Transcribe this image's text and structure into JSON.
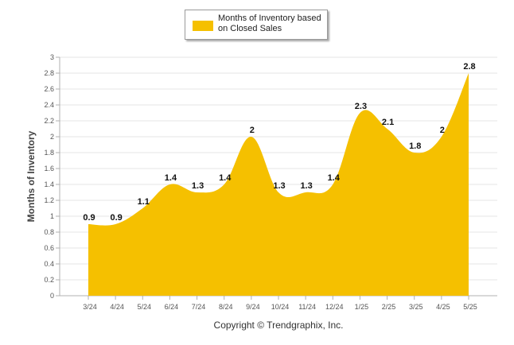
{
  "chart_data": {
    "type": "area",
    "categories": [
      "3/24",
      "4/24",
      "5/24",
      "6/24",
      "7/24",
      "8/24",
      "9/24",
      "10/24",
      "11/24",
      "12/24",
      "1/25",
      "2/25",
      "3/25",
      "4/25",
      "5/25"
    ],
    "series": [
      {
        "name": "Months of Inventory based on Closed Sales",
        "values": [
          0.9,
          0.9,
          1.1,
          1.4,
          1.3,
          1.4,
          2,
          1.3,
          1.3,
          1.4,
          2.3,
          2.1,
          1.8,
          2,
          2.8
        ],
        "labels": [
          "0.9",
          "0.9",
          "1.1",
          "1.4",
          "1.3",
          "1.4",
          "2",
          "1.3",
          "1.3",
          "1.4",
          "2.3",
          "2.1",
          "1.8",
          "2",
          "2.8"
        ]
      }
    ],
    "ylabel": "Months of Inventory",
    "xlabel": "",
    "ylim": [
      0,
      3
    ],
    "yticks": [
      "0",
      "0.2",
      "0.4",
      "0.6",
      "0.8",
      "1",
      "1.2",
      "1.4",
      "1.6",
      "1.8",
      "2",
      "2.2",
      "2.4",
      "2.6",
      "2.8",
      "3"
    ],
    "grid": true,
    "legend_position": "top-center",
    "fill_color": "#F5C000",
    "grid_color": "#e6e6e6"
  },
  "legend": {
    "label": "Months of Inventory based on Closed Sales"
  },
  "footer": {
    "copyright": "Copyright © Trendgraphix, Inc."
  }
}
